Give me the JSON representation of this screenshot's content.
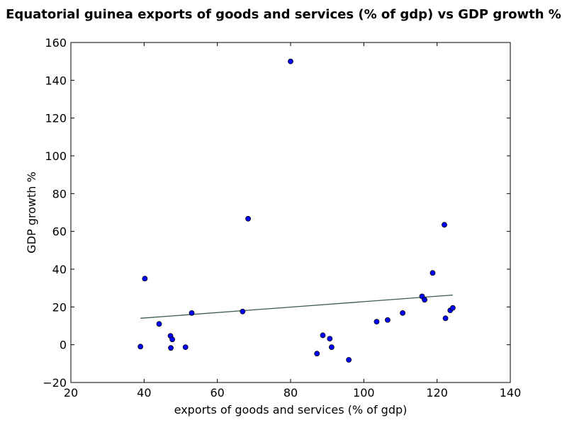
{
  "chart_data": {
    "type": "scatter",
    "title": "Equatorial guinea exports of goods and services (% of gdp) vs GDP growth %",
    "xlabel": "exports of goods and services (% of gdp)",
    "ylabel": "GDP growth %",
    "xlim": [
      20,
      140
    ],
    "ylim": [
      -20,
      160
    ],
    "xticks": [
      20,
      40,
      60,
      80,
      100,
      120,
      140
    ],
    "yticks": [
      -20,
      0,
      20,
      40,
      60,
      80,
      100,
      120,
      140,
      160
    ],
    "grid": false,
    "point_color": "#0000ff",
    "trend_color": "#3d5a4f",
    "points": [
      {
        "x": 39.0,
        "y": -1.0
      },
      {
        "x": 40.2,
        "y": 35.0
      },
      {
        "x": 44.1,
        "y": 11.0
      },
      {
        "x": 47.2,
        "y": 4.7
      },
      {
        "x": 47.7,
        "y": 2.8
      },
      {
        "x": 47.3,
        "y": -1.7
      },
      {
        "x": 51.3,
        "y": -1.3
      },
      {
        "x": 53.0,
        "y": 16.8
      },
      {
        "x": 66.9,
        "y": 17.6
      },
      {
        "x": 68.4,
        "y": 66.7
      },
      {
        "x": 80.0,
        "y": 150.0
      },
      {
        "x": 87.2,
        "y": -4.7
      },
      {
        "x": 88.8,
        "y": 5.0
      },
      {
        "x": 90.7,
        "y": 3.2
      },
      {
        "x": 91.2,
        "y": -1.3
      },
      {
        "x": 95.9,
        "y": -8.0
      },
      {
        "x": 103.5,
        "y": 12.2
      },
      {
        "x": 106.5,
        "y": 13.1
      },
      {
        "x": 110.6,
        "y": 16.8
      },
      {
        "x": 115.9,
        "y": 25.6
      },
      {
        "x": 116.6,
        "y": 23.8
      },
      {
        "x": 118.8,
        "y": 38.0
      },
      {
        "x": 122.0,
        "y": 63.5
      },
      {
        "x": 122.3,
        "y": 14.0
      },
      {
        "x": 123.6,
        "y": 18.2
      },
      {
        "x": 124.3,
        "y": 19.5
      }
    ],
    "trendline": {
      "x": [
        39.0,
        124.3
      ],
      "y": [
        14.0,
        26.3
      ]
    }
  }
}
